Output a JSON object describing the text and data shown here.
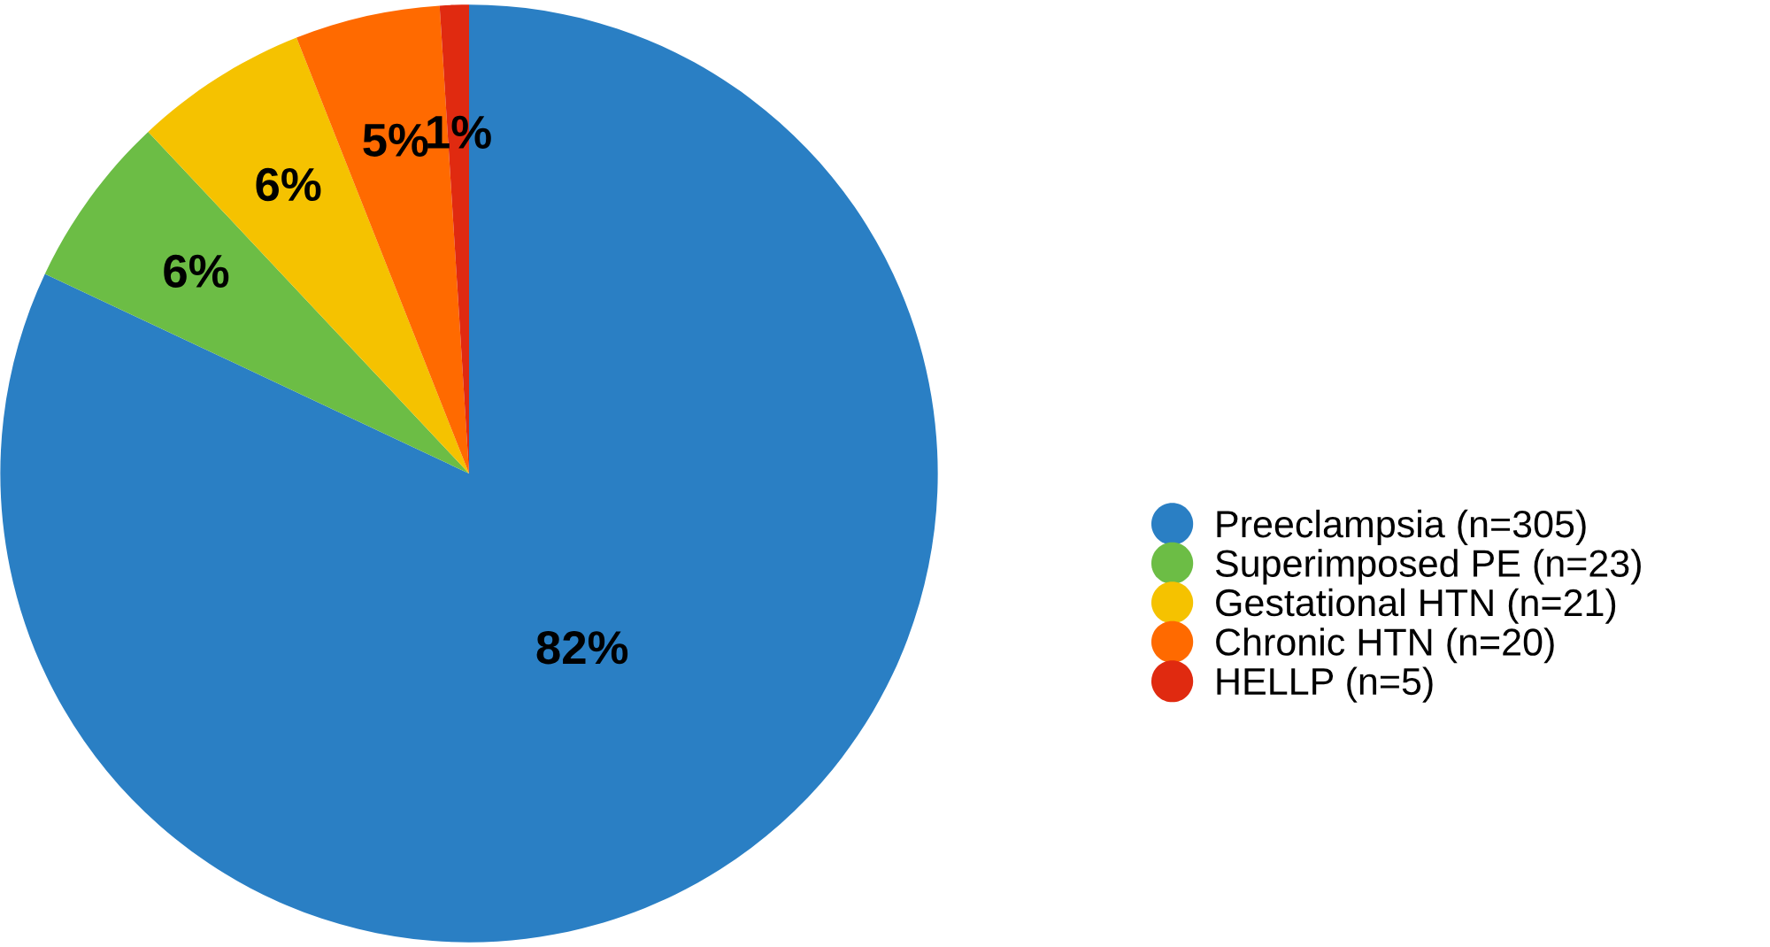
{
  "chart_data": {
    "type": "pie",
    "categories": [
      "Preeclampsia (n=305)",
      "Superimposed PE (n=23)",
      "Gestational HTN (n=21)",
      "Chronic HTN (n=20)",
      "HELLP (n=5)"
    ],
    "values": [
      82,
      6,
      6,
      5,
      1
    ],
    "colors": [
      "#2a7fc4",
      "#6cbd45",
      "#f5c200",
      "#ff6a00",
      "#e02a10"
    ],
    "value_labels": [
      "82%",
      "6%",
      "6%",
      "5%",
      "1%"
    ],
    "legend": "right"
  }
}
